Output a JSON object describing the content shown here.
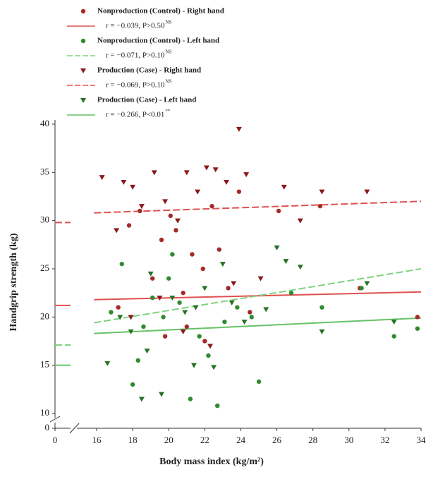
{
  "chart_data": {
    "type": "scatter",
    "x_label": "Body mass index (kg/m²)",
    "y_label": "Handgrip strength (kg)",
    "xlim": [
      0,
      34
    ],
    "xticks": [
      0,
      16,
      18,
      20,
      22,
      24,
      26,
      28,
      30,
      32,
      34
    ],
    "ylim": [
      0,
      40
    ],
    "yticks": [
      0,
      10,
      15,
      20,
      25,
      30,
      35,
      40
    ],
    "series": [
      {
        "name": "Nonproduction (Control) - Right hand",
        "color": "#a52a2a",
        "marker": "circle",
        "x": [
          17.2,
          17.8,
          18.4,
          19.1,
          19.6,
          20.1,
          20.4,
          20.8,
          21.3,
          21.9,
          22.4,
          22.8,
          23.3,
          23.9,
          24.5,
          26.1,
          28.4,
          30.6,
          33.8,
          19.8,
          21.0,
          22.0
        ],
        "values": [
          21,
          29.5,
          31,
          24,
          28,
          30.5,
          29,
          22.5,
          26.5,
          25,
          31.5,
          27,
          23,
          33,
          20.5,
          31,
          31.5,
          23,
          20,
          18,
          19,
          17.5
        ]
      },
      {
        "name": "Nonproduction (Control) - Left hand",
        "color": "#2e8b2e",
        "marker": "circle",
        "x": [
          16.8,
          17.4,
          18.0,
          18.6,
          19.1,
          19.7,
          20.2,
          20.6,
          21.2,
          21.7,
          22.2,
          22.7,
          23.1,
          23.8,
          24.6,
          25.0,
          26.8,
          28.5,
          30.7,
          32.5,
          33.8,
          18.3,
          20.0
        ],
        "values": [
          20.5,
          25.5,
          13,
          19,
          22,
          20,
          26.5,
          21.5,
          11.5,
          18,
          16,
          10.8,
          19.5,
          21,
          20,
          13.3,
          22.5,
          21,
          23,
          18,
          18.8,
          15.5,
          24
        ]
      },
      {
        "name": "Production (Case) - Right hand",
        "color": "#8b1a1a",
        "marker": "triangle",
        "x": [
          16.3,
          17.1,
          17.5,
          18.0,
          18.5,
          19.2,
          19.8,
          20.5,
          21.0,
          21.6,
          22.1,
          22.6,
          23.2,
          23.9,
          24.3,
          25.1,
          26.4,
          27.3,
          28.5,
          31.0,
          17.9,
          19.5,
          20.8,
          22.3,
          23.6
        ],
        "values": [
          34.5,
          29,
          34,
          33.5,
          31.5,
          35,
          32,
          30,
          35,
          33,
          35.5,
          35.3,
          34,
          39.5,
          34.8,
          24,
          33.5,
          30,
          33,
          33,
          20,
          22,
          18.5,
          17,
          23.5
        ]
      },
      {
        "name": "Production (Case) - Left hand",
        "color": "#267326",
        "marker": "triangle",
        "x": [
          16.6,
          17.3,
          17.9,
          18.5,
          19.0,
          19.6,
          20.2,
          20.9,
          21.4,
          22.0,
          22.5,
          23.0,
          23.5,
          24.2,
          25.4,
          26.0,
          26.5,
          27.3,
          28.5,
          31.0,
          32.5,
          18.8,
          21.5
        ],
        "values": [
          15.2,
          20,
          18.5,
          11.5,
          24.5,
          12,
          22,
          20.5,
          15,
          23,
          14.8,
          25.5,
          21.5,
          19.5,
          20.8,
          27.2,
          25.8,
          25.2,
          18.5,
          23.5,
          19.5,
          16.5,
          21
        ]
      }
    ],
    "fits": [
      {
        "name": "r = −0.039, P>0.50",
        "sup": "NS",
        "color": "#e05050",
        "dash": false,
        "intercept": 21.2,
        "x": [
          15,
          34
        ],
        "values": [
          21.8,
          22.6
        ]
      },
      {
        "name": "r = −0.071, P>0.10",
        "sup": "NS",
        "color": "#7fd27f",
        "dash": true,
        "intercept": 17.1,
        "x": [
          15,
          34
        ],
        "values": [
          19.4,
          25.0
        ]
      },
      {
        "name": "r = −0.069, P>0.10",
        "sup": "NS",
        "color": "#e05050",
        "dash": true,
        "intercept": 29.8,
        "x": [
          15,
          34
        ],
        "values": [
          30.8,
          32.0
        ]
      },
      {
        "name": "r = −0.266, P<0.01",
        "sup": "**",
        "color": "#66c266",
        "dash": false,
        "intercept": 15.0,
        "x": [
          15,
          34
        ],
        "values": [
          18.3,
          19.9
        ]
      }
    ]
  }
}
